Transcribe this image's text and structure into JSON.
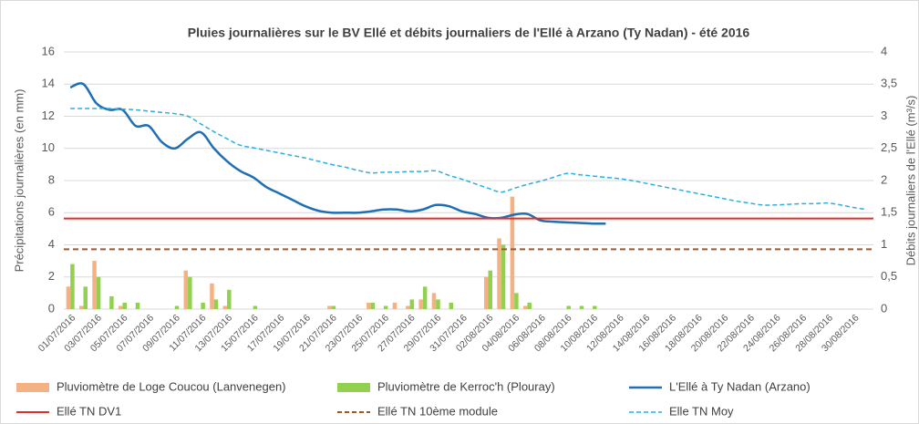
{
  "chart_data": {
    "type": "bar-line",
    "title": "Pluies journalières sur le BV Ellé et débits journaliers de l'Ellé à Arzano (Ty Nadan) - été 2016",
    "y_label": "Précipitations journalières (en mm)",
    "y2_label": "Débits journaliers de l'Ellé  (m³/s)",
    "categories": [
      "01/07/2016",
      null,
      "03/07/2016",
      null,
      "05/07/2016",
      null,
      "07/07/2016",
      null,
      "09/07/2016",
      null,
      "11/07/2016",
      null,
      "13/07/2016",
      null,
      "15/07/2016",
      null,
      "17/07/2016",
      null,
      "19/07/2016",
      null,
      "21/07/2016",
      null,
      "23/07/2016",
      null,
      "25/07/2016",
      null,
      "27/07/2016",
      null,
      "29/07/2016",
      null,
      "31/07/2016",
      null,
      "02/08/2016",
      null,
      "04/08/2016",
      null,
      "06/08/2016",
      null,
      "08/08/2016",
      null,
      "10/08/2016",
      null,
      "12/08/2016",
      null,
      "14/08/2016",
      null,
      "16/08/2016",
      null,
      "18/08/2016",
      null,
      "20/08/2016",
      null,
      "22/08/2016",
      null,
      "24/08/2016",
      null,
      "26/08/2016",
      null,
      "28/08/2016",
      null,
      "30/08/2016",
      null
    ],
    "ylim": [
      0,
      16
    ],
    "yticks": [
      0,
      2,
      4,
      6,
      8,
      10,
      12,
      14,
      16
    ],
    "y2lim": [
      0,
      4
    ],
    "y2ticks": [
      0,
      {
        "value": 0.5,
        "label": "0,5"
      },
      1,
      {
        "value": 1.5,
        "label": "1,5"
      },
      2,
      {
        "value": 2.5,
        "label": "2,5"
      },
      3,
      {
        "value": 3.5,
        "label": "3,5"
      },
      4
    ],
    "grid": true,
    "series": [
      {
        "name": "Pluviomètre de Loge Coucou (Lanvenegen)",
        "kind": "bar",
        "color": "#f4b183",
        "values": [
          1.4,
          0.2,
          3.0,
          0,
          0.2,
          0,
          0,
          0,
          0,
          2.4,
          0,
          1.6,
          0.2,
          0,
          0,
          0,
          0,
          0,
          0,
          0,
          0.2,
          0,
          0,
          0.4,
          0,
          0.4,
          0.2,
          0.6,
          1.0,
          0,
          0,
          0,
          2.0,
          4.4,
          7.0,
          0.2,
          0,
          0,
          0,
          0,
          0,
          0,
          0,
          0,
          0,
          0,
          0,
          0,
          0,
          0,
          0,
          0,
          0,
          0,
          0,
          0,
          0,
          0,
          0,
          0,
          0,
          0
        ]
      },
      {
        "name": "Pluviomètre de Kerroc'h (Plouray)",
        "kind": "bar",
        "color": "#92d050",
        "values": [
          2.8,
          1.4,
          2.0,
          0.8,
          0.4,
          0.4,
          0,
          0,
          0.2,
          2.0,
          0.4,
          0.6,
          1.2,
          0,
          0.2,
          0,
          0,
          0,
          0,
          0,
          0.2,
          0,
          0,
          0.4,
          0.2,
          0,
          0.6,
          1.4,
          0.6,
          0.4,
          0,
          0,
          2.4,
          4.0,
          1.0,
          0.4,
          0,
          0,
          0.2,
          0.2,
          0.2,
          0,
          0,
          0,
          0,
          0,
          0,
          0,
          0,
          0,
          0,
          0,
          0,
          0,
          0,
          0,
          0,
          0,
          0,
          0,
          0,
          0
        ]
      },
      {
        "name": "L'Ellé à Ty Nadan (Arzano)",
        "kind": "line",
        "axis": "y2",
        "color": "#1f6fb5",
        "width": 2.5,
        "values": [
          3.45,
          3.5,
          3.2,
          3.1,
          3.1,
          2.85,
          2.85,
          2.6,
          2.5,
          2.65,
          2.75,
          2.5,
          2.3,
          2.15,
          2.05,
          1.9,
          1.8,
          1.7,
          1.6,
          1.53,
          1.5,
          1.5,
          1.5,
          1.52,
          1.55,
          1.55,
          1.52,
          1.55,
          1.62,
          1.6,
          1.52,
          1.48,
          1.42,
          1.42,
          1.47,
          1.48,
          1.38,
          1.36,
          1.35,
          1.34,
          1.33,
          1.33,
          null,
          null,
          null,
          null,
          null,
          null,
          null,
          null,
          null,
          null,
          null,
          null,
          null,
          null,
          null,
          null,
          null,
          null,
          null,
          null
        ]
      },
      {
        "name": "Ellé TN DV1",
        "kind": "hline",
        "axis": "y2",
        "color": "#e0302a",
        "value": 1.41
      },
      {
        "name": "Ellé TN 10ème module",
        "kind": "hline",
        "axis": "y2",
        "color": "#9c5a2c",
        "dashed": true,
        "value": 0.93
      },
      {
        "name": "Elle TN Moy",
        "kind": "line",
        "axis": "y2",
        "color": "#2ab0e0",
        "dashed": true,
        "width": 1.5,
        "values": [
          3.12,
          3.12,
          3.12,
          3.12,
          3.11,
          3.1,
          3.08,
          3.06,
          3.04,
          3.0,
          2.88,
          2.76,
          2.65,
          2.55,
          2.51,
          2.47,
          2.43,
          2.39,
          2.35,
          2.3,
          2.25,
          2.21,
          2.16,
          2.12,
          2.13,
          2.13,
          2.14,
          2.14,
          2.15,
          2.08,
          2.02,
          1.95,
          1.88,
          1.82,
          1.88,
          1.94,
          1.99,
          2.05,
          2.11,
          2.09,
          2.07,
          2.05,
          2.03,
          2.0,
          1.96,
          1.92,
          1.88,
          1.84,
          1.8,
          1.76,
          1.72,
          1.68,
          1.65,
          1.62,
          1.62,
          1.63,
          1.64,
          1.64,
          1.65,
          1.62,
          1.58,
          1.55
        ]
      }
    ]
  }
}
